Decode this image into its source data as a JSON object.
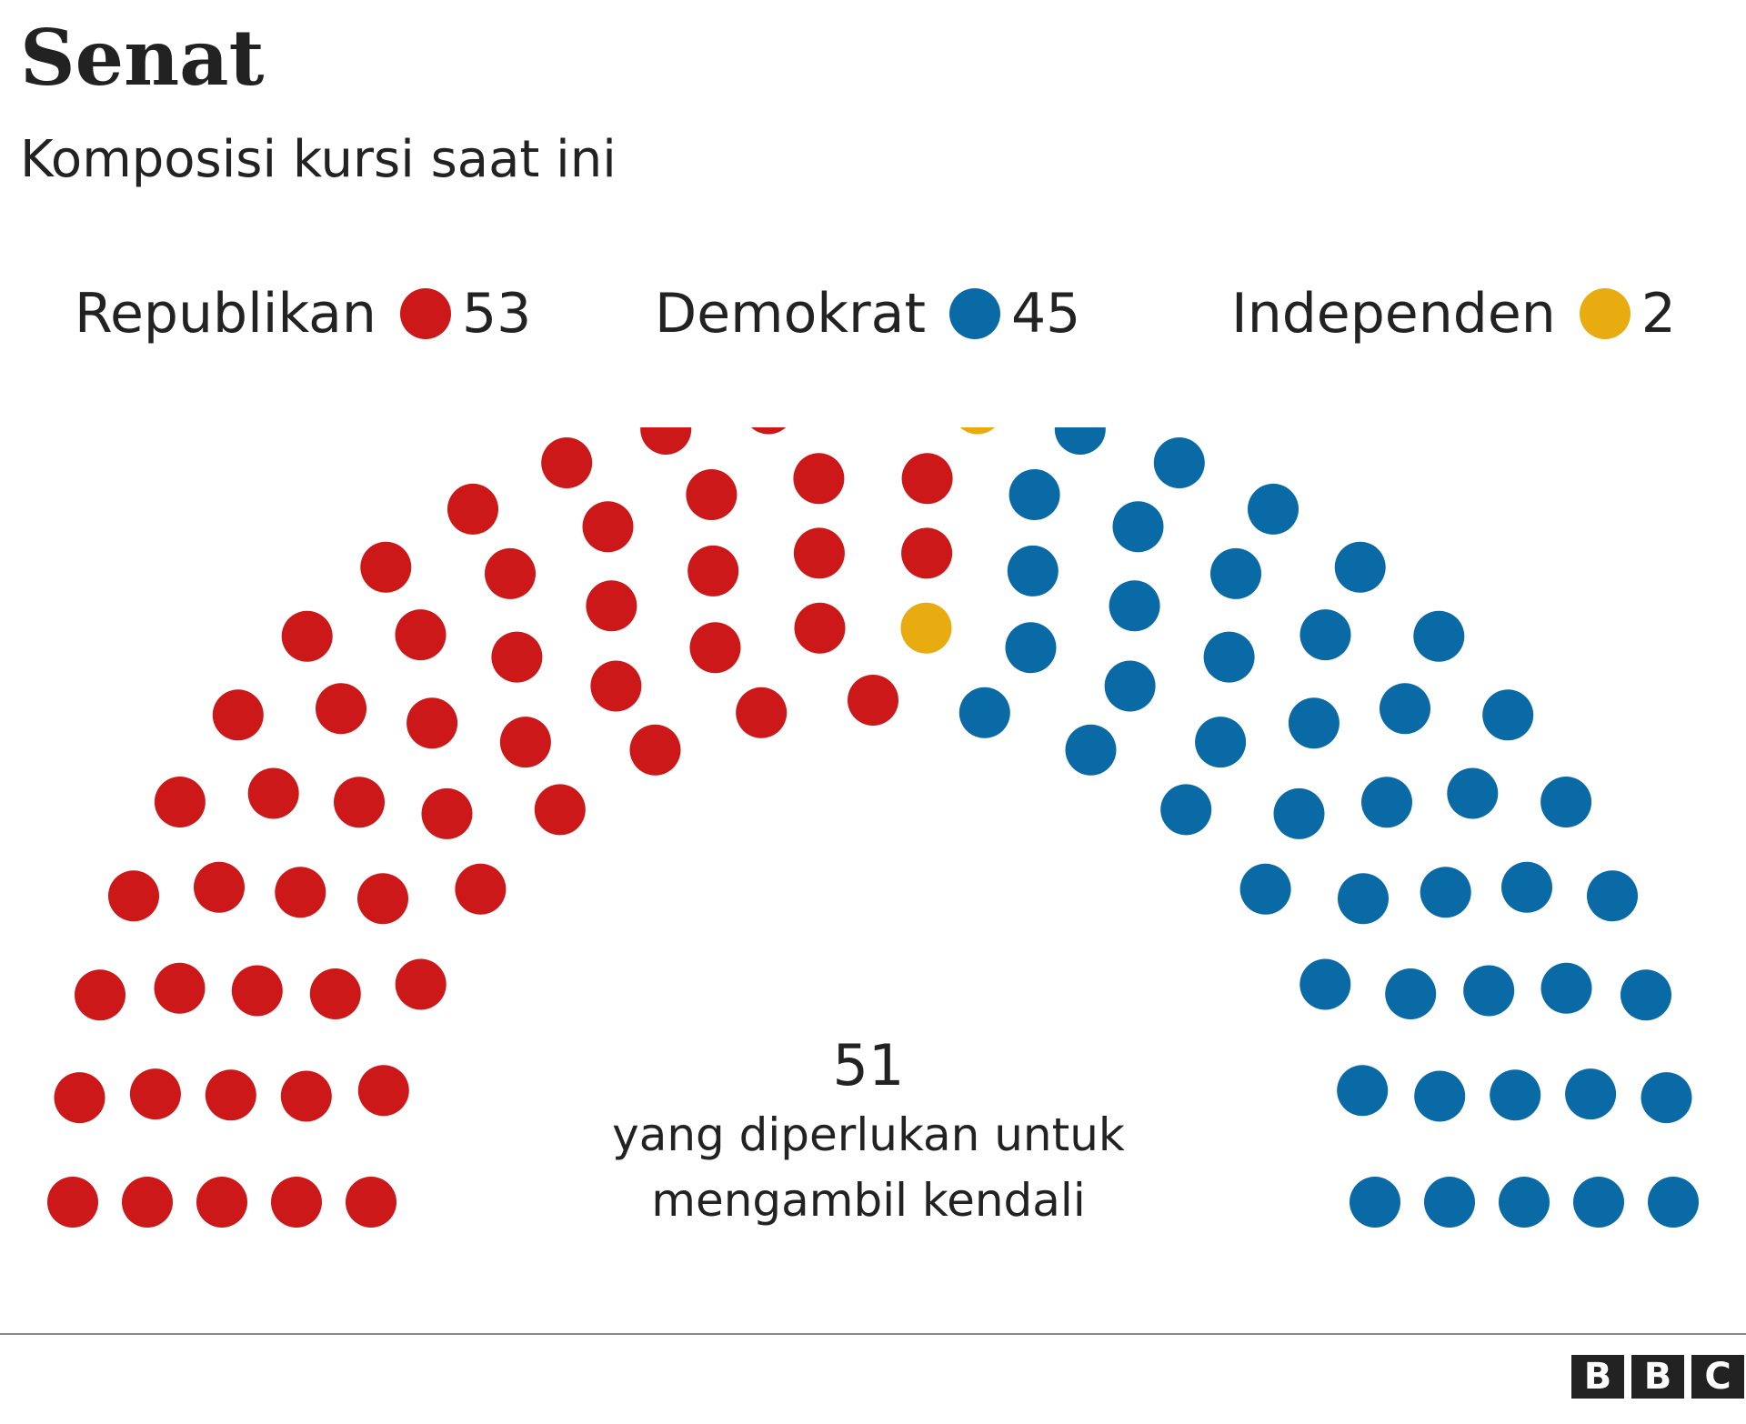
{
  "title": "Senat",
  "subtitle": "Komposisi kursi saat ini",
  "colors": {
    "republican": "#cc1818",
    "democrat": "#0a6aa6",
    "independent": "#e8ab10"
  },
  "chart_data": {
    "type": "parliament",
    "total_seats": 100,
    "rows": 5,
    "parties": [
      {
        "name": "Republikan",
        "seats": 53,
        "color": "#cc1818"
      },
      {
        "name": "Independen",
        "seats": 2,
        "color": "#e8ab10"
      },
      {
        "name": "Demokrat",
        "seats": 45,
        "color": "#0a6aa6"
      }
    ],
    "legend_order": [
      "Republikan",
      "Demokrat",
      "Independen"
    ],
    "majority": {
      "value": "51",
      "label_line1": "yang diperlukan untuk",
      "label_line2": "mengambil kendali"
    }
  },
  "legend": [
    {
      "label": "Republikan",
      "value": "53"
    },
    {
      "label": "Demokrat",
      "value": "45"
    },
    {
      "label": "Independen",
      "value": "2"
    }
  ],
  "logo": [
    "B",
    "B",
    "C"
  ]
}
